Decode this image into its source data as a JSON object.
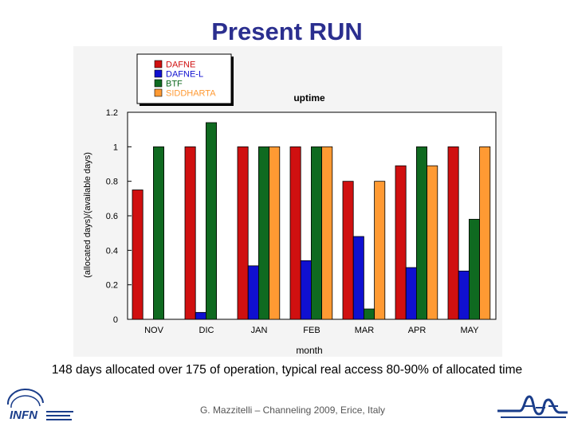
{
  "slide": {
    "title": "Present RUN",
    "caption": "148 days allocated over 175 of operation, typical real access 80-90% of allocated time",
    "footer": "G. Mazzitelli – Channeling 2009, Erice, Italy",
    "logo_left_text": "INFN"
  },
  "chart_data": {
    "type": "bar",
    "title": "uptime",
    "xlabel": "month",
    "ylabel": "(allocated days)/(available days)",
    "categories": [
      "NOV",
      "DIC",
      "JAN",
      "FEB",
      "MAR",
      "APR",
      "MAY"
    ],
    "ylim": [
      0,
      1.2
    ],
    "yticks": [
      "0",
      "0.2",
      "0.4",
      "0.6",
      "0.8",
      "1",
      "1.2"
    ],
    "ytick_values": [
      0,
      0.2,
      0.4,
      0.6,
      0.8,
      1.0,
      1.2
    ],
    "legend_position": "top-left",
    "grid": false,
    "series": [
      {
        "name": "DAFNE",
        "color": "#d01010",
        "values": [
          0.75,
          1.0,
          1.0,
          1.0,
          0.8,
          0.89,
          1.0
        ]
      },
      {
        "name": "DAFNE-L",
        "color": "#1010d0",
        "values": [
          0,
          0.04,
          0.31,
          0.34,
          0.48,
          0.3,
          0.28
        ]
      },
      {
        "name": "BTF",
        "color": "#0f6a20",
        "values": [
          1.0,
          1.14,
          1.0,
          1.0,
          0.06,
          1.0,
          0.58
        ]
      },
      {
        "name": "SIDDHARTA",
        "color": "#ff9a33",
        "values": [
          0,
          0,
          1.0,
          1.0,
          0.8,
          0.89,
          1.0
        ]
      }
    ]
  }
}
